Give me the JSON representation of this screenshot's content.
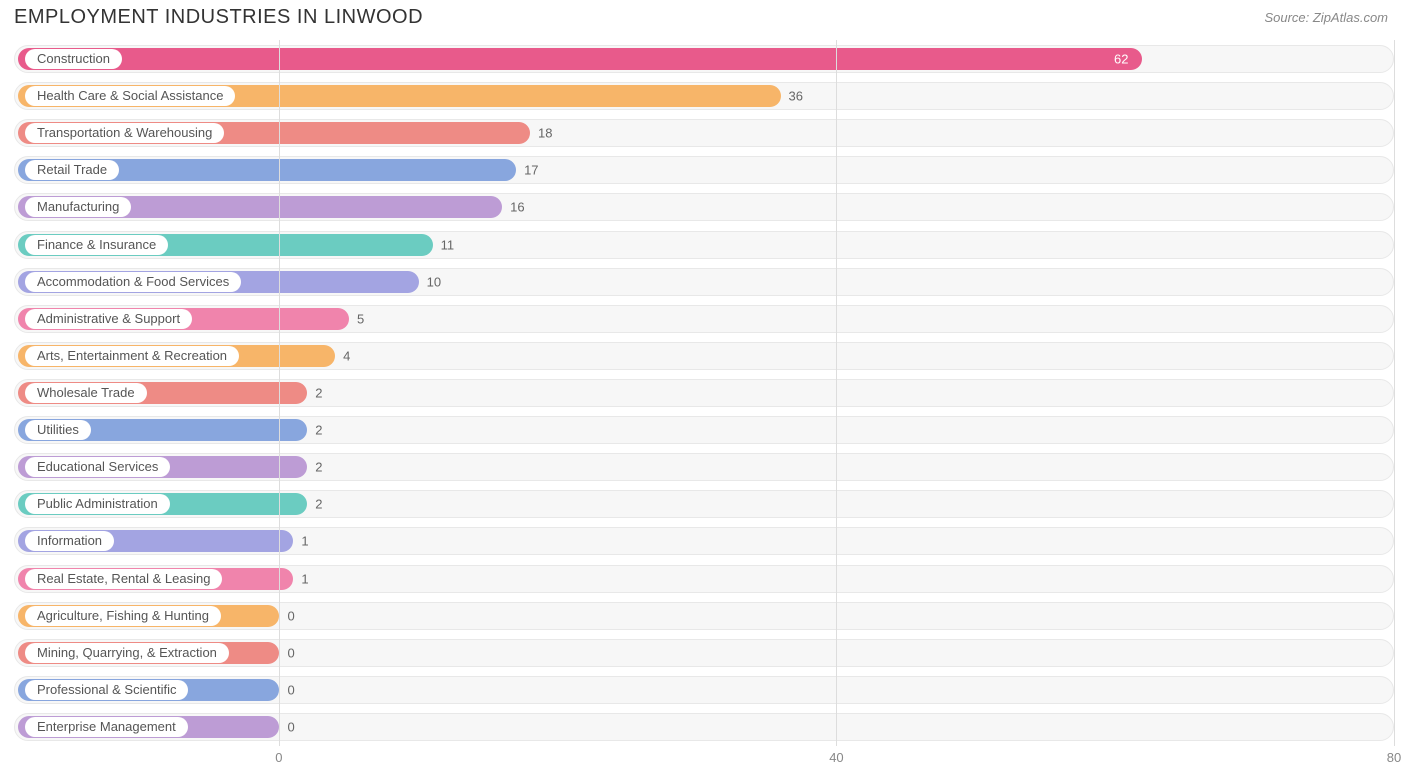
{
  "title": "EMPLOYMENT INDUSTRIES IN LINWOOD",
  "source": "Source: ZipAtlas.com",
  "chart": {
    "type": "bar-horizontal",
    "background_color": "#ffffff",
    "track_bg": "#f7f7f7",
    "track_border": "#e8e8e8",
    "grid_color": "#dddddd",
    "label_fontsize": 13,
    "title_fontsize": 20,
    "x_axis": {
      "min": -19,
      "max": 80,
      "ticks": [
        0,
        40,
        80
      ]
    },
    "bars": [
      {
        "label": "Construction",
        "value": 62,
        "color": "#e85a8b",
        "value_inside": true
      },
      {
        "label": "Health Care & Social Assistance",
        "value": 36,
        "color": "#f7b569",
        "value_inside": false
      },
      {
        "label": "Transportation & Warehousing",
        "value": 18,
        "color": "#ee8b85",
        "value_inside": false
      },
      {
        "label": "Retail Trade",
        "value": 17,
        "color": "#88a6de",
        "value_inside": false
      },
      {
        "label": "Manufacturing",
        "value": 16,
        "color": "#bd9cd5",
        "value_inside": false
      },
      {
        "label": "Finance & Insurance",
        "value": 11,
        "color": "#6bccc1",
        "value_inside": false
      },
      {
        "label": "Accommodation & Food Services",
        "value": 10,
        "color": "#a3a4e2",
        "value_inside": false
      },
      {
        "label": "Administrative & Support",
        "value": 5,
        "color": "#f084ac",
        "value_inside": false
      },
      {
        "label": "Arts, Entertainment & Recreation",
        "value": 4,
        "color": "#f7b569",
        "value_inside": false
      },
      {
        "label": "Wholesale Trade",
        "value": 2,
        "color": "#ee8b85",
        "value_inside": false
      },
      {
        "label": "Utilities",
        "value": 2,
        "color": "#88a6de",
        "value_inside": false
      },
      {
        "label": "Educational Services",
        "value": 2,
        "color": "#bd9cd5",
        "value_inside": false
      },
      {
        "label": "Public Administration",
        "value": 2,
        "color": "#6bccc1",
        "value_inside": false
      },
      {
        "label": "Information",
        "value": 1,
        "color": "#a3a4e2",
        "value_inside": false
      },
      {
        "label": "Real Estate, Rental & Leasing",
        "value": 1,
        "color": "#f084ac",
        "value_inside": false
      },
      {
        "label": "Agriculture, Fishing & Hunting",
        "value": 0,
        "color": "#f7b569",
        "value_inside": false
      },
      {
        "label": "Mining, Quarrying, & Extraction",
        "value": 0,
        "color": "#ee8b85",
        "value_inside": false
      },
      {
        "label": "Professional & Scientific",
        "value": 0,
        "color": "#88a6de",
        "value_inside": false
      },
      {
        "label": "Enterprise Management",
        "value": 0,
        "color": "#bd9cd5",
        "value_inside": false
      }
    ]
  }
}
